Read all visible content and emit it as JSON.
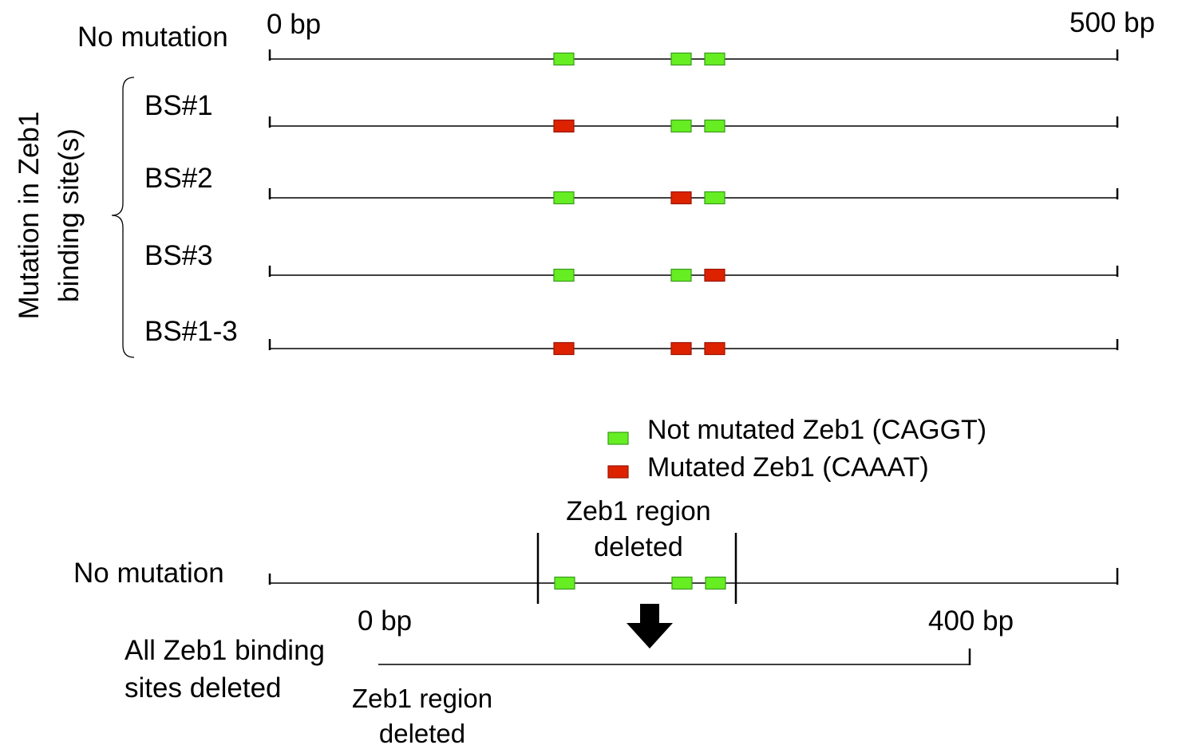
{
  "colors": {
    "not_mutated": "#66ee22",
    "not_mutated_stroke": "#3a9a1a",
    "mutated": "#dd2200",
    "mutated_stroke": "#991500",
    "line": "#000000"
  },
  "top": {
    "label_no_mutation": "No mutation",
    "scale_start": "0 bp",
    "scale_end": "500 bp",
    "group_label_line1": "Mutation in Zeb1",
    "group_label_line2": "binding site(s)",
    "tracks": [
      {
        "label": "No mutation",
        "sites": [
          "not_mutated",
          "not_mutated",
          "not_mutated"
        ]
      },
      {
        "label": "BS#1",
        "sites": [
          "mutated",
          "not_mutated",
          "not_mutated"
        ]
      },
      {
        "label": "BS#2",
        "sites": [
          "not_mutated",
          "mutated",
          "not_mutated"
        ]
      },
      {
        "label": "BS#3",
        "sites": [
          "not_mutated",
          "not_mutated",
          "mutated"
        ]
      },
      {
        "label": "BS#1-3",
        "sites": [
          "mutated",
          "mutated",
          "mutated"
        ]
      }
    ]
  },
  "legend": {
    "not_mutated_label": "Not mutated Zeb1 (CAGGT)",
    "mutated_label": "Mutated Zeb1 (CAAAT)"
  },
  "bottom": {
    "label_no_mutation": "No mutation",
    "region_label_line1": "Zeb1 region",
    "region_label_line2": "deleted",
    "scale_start": "0 bp",
    "scale_end": "400 bp",
    "deleted_label_line1": "All Zeb1 binding",
    "deleted_label_line2": "sites deleted",
    "deleted_region_line1": "Zeb1 region",
    "deleted_region_line2": "deleted",
    "sites": [
      "not_mutated",
      "not_mutated",
      "not_mutated"
    ]
  }
}
